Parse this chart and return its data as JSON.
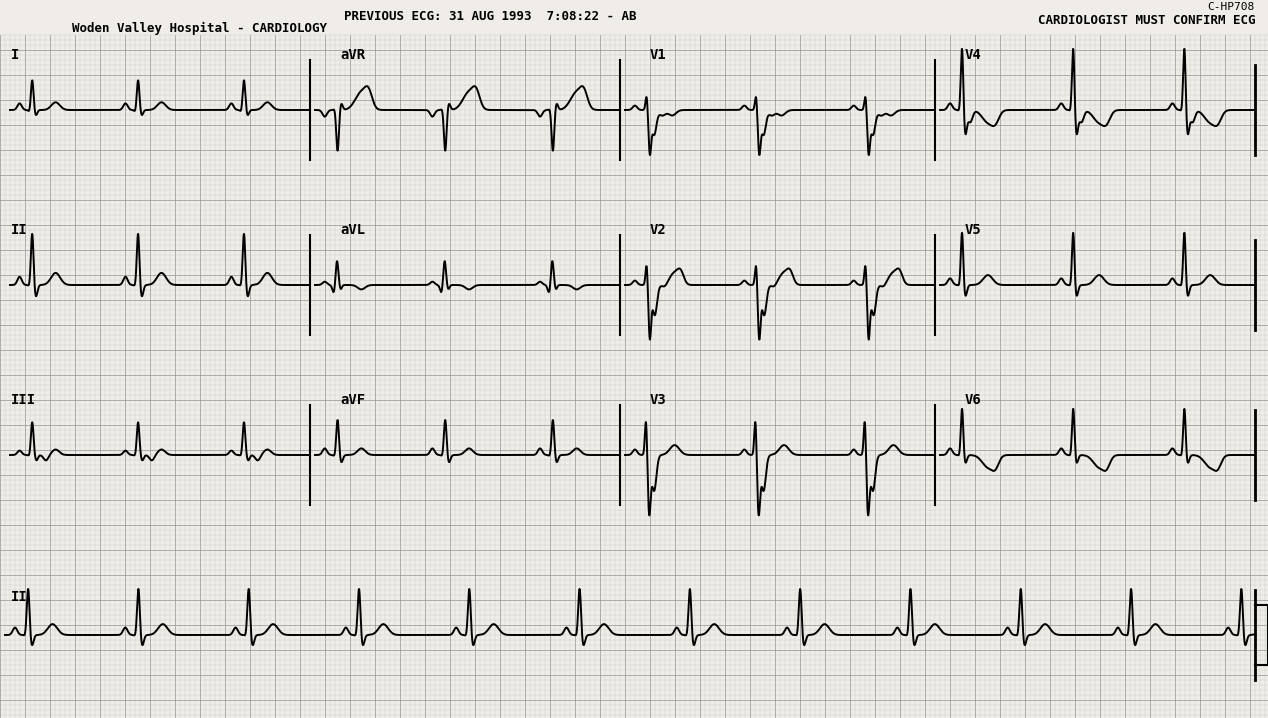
{
  "title_line1": "PREVIOUS ECG: 31 AUG 1993  7:08:22 - AB",
  "title_line2": "Woden Valley Hospital - CARDIOLOGY",
  "top_right_line1": "C-HP708",
  "top_right_line2": "CARDIOLOGIST MUST CONFIRM ECG",
  "background_color": "#f0ede8",
  "grid_dot_color": "#aaaaaa",
  "grid_major_color": "#999999",
  "ecg_color": "#000000",
  "text_color": "#000000",
  "hr": 68,
  "ecg_lw": 1.4,
  "scale": 0.072
}
